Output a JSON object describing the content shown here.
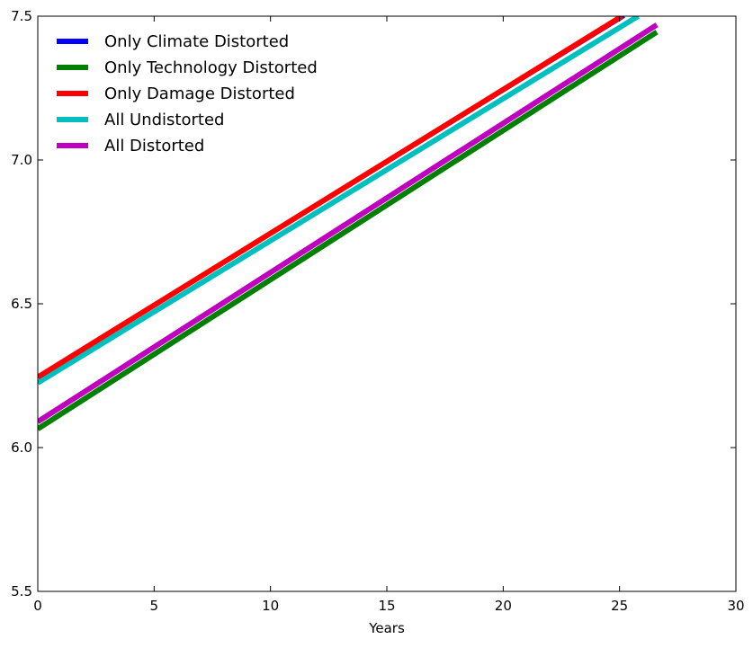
{
  "chart_data": {
    "type": "line",
    "title": "",
    "xlabel": "Years",
    "ylabel": "",
    "xlim": [
      0,
      30
    ],
    "ylim": [
      5.5,
      7.5
    ],
    "x_ticks": [
      0,
      5,
      10,
      15,
      20,
      25,
      30
    ],
    "y_ticks": [
      5.5,
      6.0,
      6.5,
      7.0,
      7.5
    ],
    "x_tick_labels": [
      "0",
      "5",
      "10",
      "15",
      "20",
      "25",
      "30"
    ],
    "y_tick_labels": [
      "5.5",
      "6.0",
      "6.5",
      "7.0",
      "7.5"
    ],
    "grid": false,
    "legend_position": "top-left",
    "series": [
      {
        "name": "Only Climate Distorted",
        "color": "#0000ff",
        "x": [
          0,
          25.2
        ],
        "values": [
          6.245,
          7.5
        ]
      },
      {
        "name": "Only Technology Distorted",
        "color": "#008000",
        "x": [
          0,
          26.6
        ],
        "values": [
          6.065,
          7.445
        ]
      },
      {
        "name": "Only Damage Distorted",
        "color": "#ff0000",
        "x": [
          0,
          25.1
        ],
        "values": [
          6.245,
          7.5
        ]
      },
      {
        "name": "All Undistorted",
        "color": "#00bfbf",
        "x": [
          0,
          25.8
        ],
        "values": [
          6.225,
          7.5
        ]
      },
      {
        "name": "All Distorted",
        "color": "#bf00bf",
        "x": [
          0,
          26.6
        ],
        "values": [
          6.09,
          7.47
        ]
      }
    ]
  }
}
